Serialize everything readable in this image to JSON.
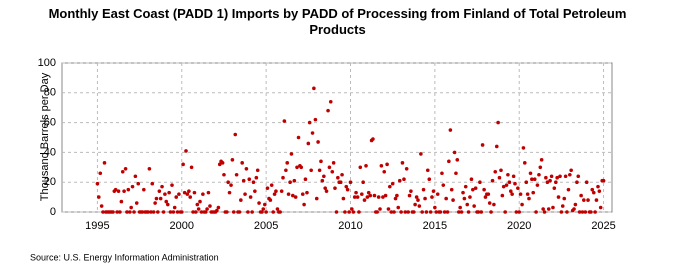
{
  "chart_data": {
    "type": "scatter",
    "title": "Monthly East Coast (PADD 1) Imports by PADD of Processing from Finland of Total Petroleum Products",
    "y_label": "Thousand Barrels per Day",
    "source": "Source: U.S. Energy Information Administration",
    "color": "#c00000",
    "grid": true,
    "xlim": [
      1992.9,
      2025.5
    ],
    "ylim": [
      0,
      100
    ],
    "xticks": [
      1995,
      2000,
      2005,
      2010,
      2015,
      2020,
      2025
    ],
    "yticks": [
      0,
      20,
      40,
      60,
      80,
      100
    ],
    "x": [
      1995,
      1995.08,
      1995.17,
      1995.25,
      1995.33,
      1995.42,
      1995.5,
      1995.58,
      1995.67,
      1995.75,
      1995.83,
      1995.92,
      1996,
      1996.08,
      1996.17,
      1996.25,
      1996.33,
      1996.42,
      1996.5,
      1996.58,
      1996.67,
      1996.75,
      1996.83,
      1996.92,
      1997,
      1997.08,
      1997.17,
      1997.25,
      1997.33,
      1997.42,
      1997.5,
      1997.58,
      1997.67,
      1997.75,
      1997.83,
      1997.92,
      1998,
      1998.08,
      1998.17,
      1998.25,
      1998.33,
      1998.42,
      1998.5,
      1998.58,
      1998.67,
      1998.75,
      1998.83,
      1998.92,
      1999,
      1999.08,
      1999.17,
      1999.25,
      1999.33,
      1999.42,
      1999.5,
      1999.58,
      1999.67,
      1999.75,
      1999.83,
      1999.92,
      2000,
      2000.08,
      2000.17,
      2000.25,
      2000.33,
      2000.42,
      2000.5,
      2000.58,
      2000.67,
      2000.75,
      2000.83,
      2000.92,
      2001,
      2001.08,
      2001.17,
      2001.25,
      2001.33,
      2001.42,
      2001.5,
      2001.58,
      2001.67,
      2001.75,
      2001.83,
      2001.92,
      2002,
      2002.08,
      2002.17,
      2002.25,
      2002.33,
      2002.42,
      2002.5,
      2002.58,
      2002.67,
      2002.75,
      2002.83,
      2002.92,
      2003,
      2003.08,
      2003.17,
      2003.25,
      2003.33,
      2003.42,
      2003.5,
      2003.58,
      2003.67,
      2003.75,
      2003.83,
      2003.92,
      2004,
      2004.08,
      2004.17,
      2004.25,
      2004.33,
      2004.42,
      2004.5,
      2004.58,
      2004.67,
      2004.75,
      2004.83,
      2004.92,
      2005,
      2005.08,
      2005.17,
      2005.25,
      2005.33,
      2005.42,
      2005.5,
      2005.58,
      2005.67,
      2005.75,
      2005.83,
      2005.92,
      2006,
      2006.08,
      2006.17,
      2006.25,
      2006.33,
      2006.42,
      2006.5,
      2006.58,
      2006.67,
      2006.75,
      2006.83,
      2006.92,
      2007,
      2007.08,
      2007.17,
      2007.25,
      2007.33,
      2007.42,
      2007.5,
      2007.58,
      2007.67,
      2007.75,
      2007.83,
      2007.92,
      2008,
      2008.08,
      2008.17,
      2008.25,
      2008.33,
      2008.42,
      2008.5,
      2008.58,
      2008.67,
      2008.75,
      2008.83,
      2008.92,
      2009,
      2009.08,
      2009.17,
      2009.25,
      2009.33,
      2009.42,
      2009.5,
      2009.58,
      2009.67,
      2009.75,
      2009.83,
      2009.92,
      2010,
      2010.08,
      2010.17,
      2010.25,
      2010.33,
      2010.42,
      2010.5,
      2010.58,
      2010.67,
      2010.75,
      2010.83,
      2010.92,
      2011,
      2011.08,
      2011.17,
      2011.25,
      2011.33,
      2011.42,
      2011.5,
      2011.58,
      2011.67,
      2011.75,
      2011.83,
      2011.92,
      2012,
      2012.08,
      2012.17,
      2012.25,
      2012.33,
      2012.42,
      2012.5,
      2012.58,
      2012.67,
      2012.75,
      2012.83,
      2012.92,
      2013,
      2013.08,
      2013.17,
      2013.25,
      2013.33,
      2013.42,
      2013.5,
      2013.58,
      2013.67,
      2013.75,
      2013.83,
      2013.92,
      2014,
      2014.08,
      2014.17,
      2014.25,
      2014.33,
      2014.42,
      2014.5,
      2014.58,
      2014.67,
      2014.75,
      2014.83,
      2014.92,
      2015,
      2015.08,
      2015.17,
      2015.25,
      2015.33,
      2015.42,
      2015.5,
      2015.58,
      2015.67,
      2015.75,
      2015.83,
      2015.92,
      2016,
      2016.08,
      2016.17,
      2016.25,
      2016.33,
      2016.42,
      2016.5,
      2016.58,
      2016.67,
      2016.75,
      2016.83,
      2016.92,
      2017,
      2017.08,
      2017.17,
      2017.25,
      2017.33,
      2017.42,
      2017.5,
      2017.58,
      2017.67,
      2017.75,
      2017.83,
      2017.92,
      2018,
      2018.08,
      2018.17,
      2018.25,
      2018.33,
      2018.42,
      2018.5,
      2018.58,
      2018.67,
      2018.75,
      2018.83,
      2018.92,
      2019,
      2019.08,
      2019.17,
      2019.25,
      2019.33,
      2019.42,
      2019.5,
      2019.58,
      2019.67,
      2019.75,
      2019.83,
      2019.92,
      2020,
      2020.08,
      2020.17,
      2020.25,
      2020.33,
      2020.42,
      2020.5,
      2020.58,
      2020.67,
      2020.75,
      2020.83,
      2020.92,
      2021,
      2021.08,
      2021.17,
      2021.25,
      2021.33,
      2021.42,
      2021.5,
      2021.58,
      2021.67,
      2021.75,
      2021.83,
      2021.92,
      2022,
      2022.08,
      2022.17,
      2022.25,
      2022.33,
      2022.42,
      2022.5,
      2022.58,
      2022.67,
      2022.75,
      2022.83,
      2022.92,
      2023,
      2023.08,
      2023.17,
      2023.25,
      2023.33,
      2023.42,
      2023.5,
      2023.58,
      2023.67,
      2023.75,
      2023.83,
      2023.92,
      2024,
      2024.08,
      2024.17,
      2024.25,
      2024.33,
      2024.42,
      2024.5,
      2024.58,
      2024.67,
      2024.75,
      2024.83,
      2024.92,
      2025
    ],
    "values": [
      19,
      10,
      26,
      4,
      0,
      33,
      0,
      0,
      0,
      0,
      0,
      0,
      14,
      15,
      0,
      14,
      0,
      7,
      27,
      14,
      29,
      0,
      15,
      0,
      3,
      17,
      0,
      24,
      6,
      19,
      0,
      0,
      0,
      15,
      0,
      0,
      0,
      29,
      0,
      19,
      0,
      6,
      9,
      0,
      14,
      9,
      17,
      0,
      12,
      7,
      5,
      13,
      0,
      18,
      0,
      3,
      10,
      0,
      12,
      0,
      0,
      32,
      13,
      41,
      12,
      14,
      10,
      30,
      0,
      13,
      0,
      5,
      2,
      7,
      0,
      12,
      0,
      0,
      2,
      13,
      4,
      0,
      0,
      0,
      0,
      1,
      3,
      32,
      34,
      33,
      25,
      0,
      0,
      20,
      13,
      18,
      35,
      0,
      52,
      25,
      0,
      0,
      8,
      33,
      21,
      12,
      29,
      0,
      22,
      10,
      0,
      20,
      14,
      23,
      28,
      6,
      0,
      0,
      2,
      5,
      0,
      16,
      9,
      8,
      18,
      0,
      12,
      14,
      2,
      0,
      0,
      14,
      23,
      61,
      28,
      33,
      12,
      20,
      39,
      11,
      21,
      10,
      30,
      50,
      31,
      30,
      12,
      5,
      22,
      13,
      46,
      60,
      28,
      53,
      83,
      62,
      9,
      47,
      28,
      34,
      21,
      24,
      16,
      14,
      68,
      30,
      74,
      27,
      33,
      16,
      0,
      23,
      20,
      20,
      25,
      9,
      0,
      17,
      15,
      0,
      20,
      2,
      0,
      10,
      13,
      10,
      0,
      30,
      12,
      20,
      8,
      31,
      10,
      13,
      11,
      48,
      49,
      11,
      0,
      0,
      10,
      2,
      31,
      10,
      27,
      11,
      32,
      2,
      17,
      0,
      19,
      0,
      9,
      11,
      3,
      21,
      0,
      33,
      22,
      0,
      29,
      0,
      11,
      14,
      0,
      0,
      5,
      10,
      8,
      4,
      39,
      0,
      15,
      9,
      0,
      28,
      22,
      0,
      10,
      14,
      3,
      0,
      12,
      0,
      0,
      26,
      18,
      0,
      9,
      0,
      34,
      55,
      15,
      8,
      40,
      26,
      35,
      0,
      3,
      0,
      13,
      9,
      17,
      5,
      0,
      10,
      22,
      15,
      4,
      16,
      0,
      0,
      20,
      0,
      45,
      15,
      10,
      12,
      12,
      6,
      0,
      21,
      5,
      27,
      44,
      60,
      23,
      28,
      11,
      17,
      0,
      18,
      25,
      20,
      14,
      12,
      24,
      19,
      0,
      16,
      0,
      12,
      5,
      43,
      33,
      20,
      12,
      9,
      26,
      22,
      13,
      22,
      0,
      18,
      25,
      30,
      35,
      2,
      0,
      23,
      20,
      2,
      21,
      24,
      3,
      16,
      20,
      23,
      10,
      24,
      0,
      4,
      9,
      24,
      0,
      15,
      25,
      28,
      1,
      2,
      5,
      20,
      24,
      0,
      11,
      0,
      8,
      0,
      20,
      8,
      0,
      0,
      15,
      13,
      0,
      8,
      17,
      14,
      3,
      21,
      21
    ]
  }
}
